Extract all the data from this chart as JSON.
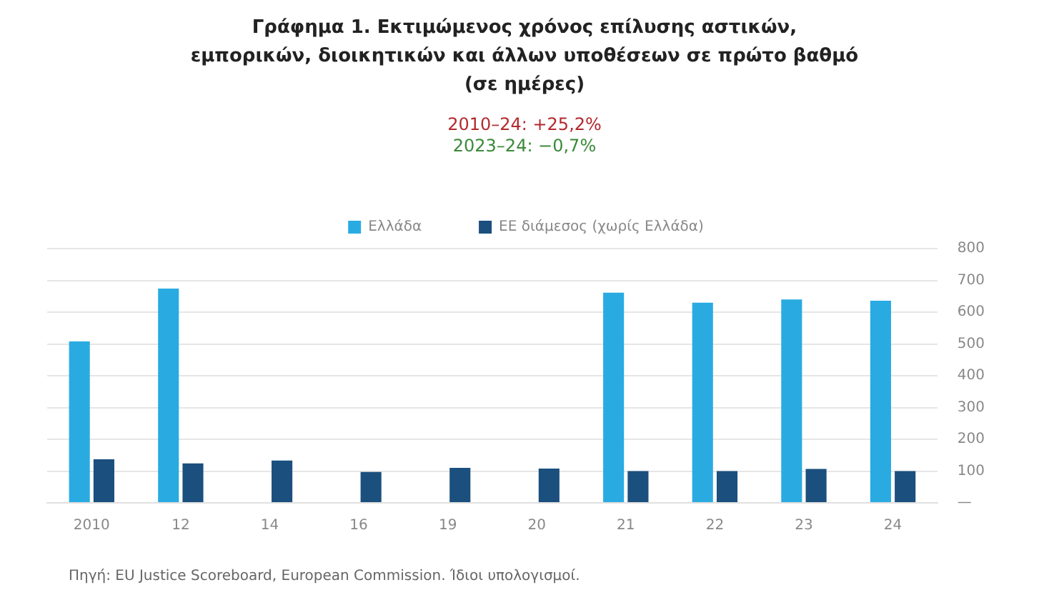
{
  "chart_data": {
    "type": "bar",
    "title": "Γράφημα 1. Εκτιμώμενος χρόνος επίλυσης αστικών, εμπορικών, διοικητικών και άλλων υποθέσεων σε πρώτο βαθμό (σε ημέρες)",
    "annotations": [
      "2010–24: +25,2%",
      "2023–24: −0,7%",
      "Πηγή: EU Justice Scoreboard, European Commission. Ίδιοι υπολογισμοί."
    ],
    "categories": [
      "2010",
      "12",
      "14",
      "16",
      "19",
      "20",
      "21",
      "22",
      "23",
      "24"
    ],
    "series": [
      {
        "name": "Ελλάδα",
        "color": "#29abe2",
        "values": [
          508,
          674,
          null,
          null,
          null,
          null,
          661,
          630,
          640,
          636
        ]
      },
      {
        "name": "ΕΕ διάμεσος (χωρίς Ελλάδα)",
        "color": "#1b4f7e",
        "values": [
          137,
          124,
          133,
          97,
          110,
          108,
          100,
          100,
          107,
          100
        ]
      }
    ],
    "ylim": [
      0,
      800
    ],
    "yticks": [
      {
        "value": 0,
        "label": "—"
      },
      100,
      200,
      300,
      400,
      500,
      600,
      700,
      800
    ],
    "grid": "y",
    "legend": "top"
  }
}
